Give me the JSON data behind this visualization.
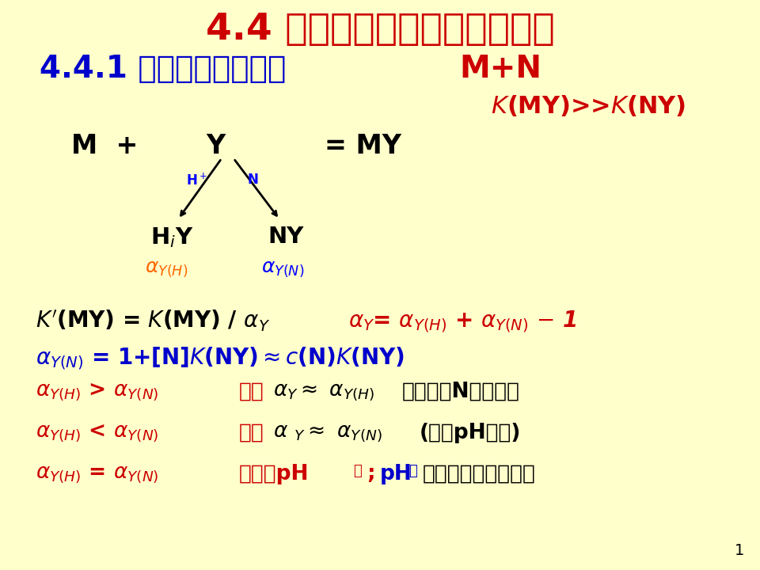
{
  "bg_color": "#FFFFCC",
  "title": "4.4 混合金属离子的选择性滴定",
  "title_color": "#CC0000",
  "title_fontsize": 34,
  "subtitle": "4.4.1 控制酸度分步滴定",
  "subtitle_color": "#0000CC",
  "subtitle_fontsize": 28,
  "mn_label": "M+N",
  "mn_color": "#CC0000",
  "mn_fontsize": 28,
  "kmy_kny_color": "#CC0000",
  "kmy_kny_fontsize": 22,
  "page_num": "1",
  "line3_color": "#CC0000",
  "line4_color": "#0000CC",
  "line5_color": "#CC0000",
  "line6_color": "#CC0000",
  "line7_color": "#CC0000"
}
